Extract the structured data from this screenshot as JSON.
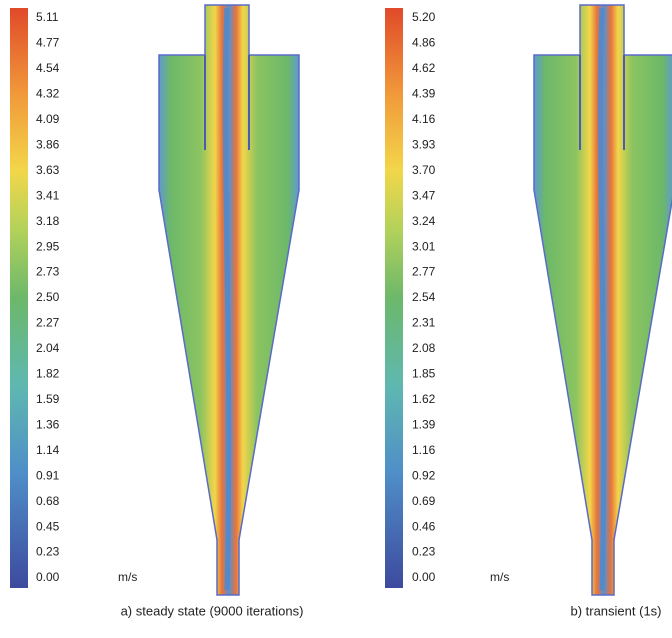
{
  "panels": [
    {
      "scale_labels": [
        "5.11",
        "4.77",
        "4.54",
        "4.32",
        "4.09",
        "3.86",
        "3.63",
        "3.41",
        "3.18",
        "2.95",
        "2.73",
        "2.50",
        "2.27",
        "2.04",
        "1.82",
        "1.59",
        "1.36",
        "1.14",
        "0.91",
        "0.68",
        "0.45",
        "0.23",
        "0.00"
      ],
      "unit": "m/s",
      "caption": "a) steady state (9000 iterations)"
    },
    {
      "scale_labels": [
        "5.20",
        "4.86",
        "4.62",
        "4.39",
        "4.16",
        "3.93",
        "3.70",
        "3.47",
        "3.24",
        "3.01",
        "2.77",
        "2.54",
        "2.31",
        "2.08",
        "1.85",
        "1.62",
        "1.39",
        "1.16",
        "0.92",
        "0.69",
        "0.46",
        "0.23",
        "0.00"
      ],
      "unit": "m/s",
      "caption": "b) transient (1s)"
    }
  ]
}
